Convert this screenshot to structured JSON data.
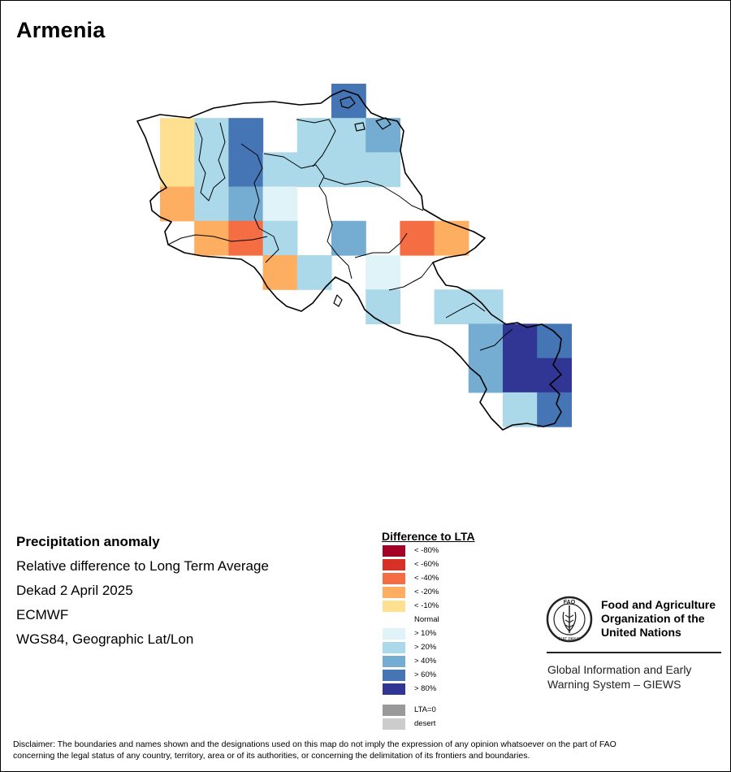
{
  "title": "Armenia",
  "info": {
    "heading": "Precipitation anomaly",
    "line1": "Relative difference to Long Term Average",
    "line2": "Dekad 2 April 2025",
    "line3": "ECMWF",
    "line4": "WGS84, Geographic Lat/Lon"
  },
  "legend": {
    "title": "Difference to LTA",
    "items": [
      {
        "label": "< -80%",
        "color": "#a50026"
      },
      {
        "label": "< -60%",
        "color": "#d73027"
      },
      {
        "label": "< -40%",
        "color": "#f46d43"
      },
      {
        "label": "< -20%",
        "color": "#fdae61"
      },
      {
        "label": "< -10%",
        "color": "#fee090"
      },
      {
        "label": "Normal",
        "color": "#ffffff"
      },
      {
        "label": "> 10%",
        "color": "#e0f3f8"
      },
      {
        "label": "> 20%",
        "color": "#abd9e9"
      },
      {
        "label": "> 40%",
        "color": "#74add1"
      },
      {
        "label": "> 60%",
        "color": "#4575b4"
      },
      {
        "label": "> 80%",
        "color": "#313695"
      }
    ],
    "extra": [
      {
        "label": "LTA=0",
        "color": "#999999"
      },
      {
        "label": "desert",
        "color": "#cccccc"
      }
    ]
  },
  "fao": {
    "logo_text": "FAO",
    "logo_motto": "FIAT PANIS",
    "name_line1": "Food and Agriculture",
    "name_line2": "Organization of the",
    "name_line3": "United Nations",
    "giews_line1": "Global Information and Early",
    "giews_line2": "Warning System – GIEWS"
  },
  "disclaimer_line1": "Disclaimer: The boundaries and names shown and the designations used on this map do not imply the expression of any opinion whatsoever on the part of FAO",
  "disclaimer_line2": "concerning the legal status of any country, territory, area or of its authorities, or concerning the delimitation of its frontiers and boundaries.",
  "map_grid": [
    {
      "row": 0,
      "col": 5,
      "class": "> 60%"
    },
    {
      "row": 1,
      "col": 0,
      "class": "< -10%"
    },
    {
      "row": 1,
      "col": 1,
      "class": "> 20%"
    },
    {
      "row": 1,
      "col": 2,
      "class": "> 60%"
    },
    {
      "row": 1,
      "col": 4,
      "class": "> 20%"
    },
    {
      "row": 1,
      "col": 5,
      "class": "> 20%"
    },
    {
      "row": 1,
      "col": 6,
      "class": "> 40%"
    },
    {
      "row": 2,
      "col": 0,
      "class": "< -10%"
    },
    {
      "row": 2,
      "col": 1,
      "class": "> 20%"
    },
    {
      "row": 2,
      "col": 2,
      "class": "> 60%"
    },
    {
      "row": 2,
      "col": 3,
      "class": "> 20%"
    },
    {
      "row": 2,
      "col": 4,
      "class": "> 20%"
    },
    {
      "row": 2,
      "col": 5,
      "class": "> 20%"
    },
    {
      "row": 2,
      "col": 6,
      "class": "> 20%"
    },
    {
      "row": 3,
      "col": 0,
      "class": "< -20%"
    },
    {
      "row": 3,
      "col": 1,
      "class": "> 20%"
    },
    {
      "row": 3,
      "col": 2,
      "class": "> 40%"
    },
    {
      "row": 3,
      "col": 3,
      "class": "> 10%"
    },
    {
      "row": 4,
      "col": 1,
      "class": "< -20%"
    },
    {
      "row": 4,
      "col": 2,
      "class": "< -40%"
    },
    {
      "row": 4,
      "col": 3,
      "class": "> 20%"
    },
    {
      "row": 4,
      "col": 5,
      "class": "> 40%"
    },
    {
      "row": 4,
      "col": 7,
      "class": "< -40%"
    },
    {
      "row": 4,
      "col": 8,
      "class": "< -20%"
    },
    {
      "row": 5,
      "col": 3,
      "class": "< -20%"
    },
    {
      "row": 5,
      "col": 4,
      "class": "> 20%"
    },
    {
      "row": 5,
      "col": 6,
      "class": "> 10%"
    },
    {
      "row": 6,
      "col": 6,
      "class": "> 20%"
    },
    {
      "row": 6,
      "col": 8,
      "class": "> 20%"
    },
    {
      "row": 6,
      "col": 9,
      "class": "> 20%"
    },
    {
      "row": 7,
      "col": 9,
      "class": "> 40%"
    },
    {
      "row": 7,
      "col": 10,
      "class": "> 80%"
    },
    {
      "row": 7,
      "col": 11,
      "class": "> 60%"
    },
    {
      "row": 8,
      "col": 9,
      "class": "> 40%"
    },
    {
      "row": 8,
      "col": 10,
      "class": "> 80%"
    },
    {
      "row": 8,
      "col": 11,
      "class": "> 80%"
    },
    {
      "row": 9,
      "col": 10,
      "class": "> 20%"
    },
    {
      "row": 9,
      "col": 11,
      "class": "> 60%"
    }
  ]
}
